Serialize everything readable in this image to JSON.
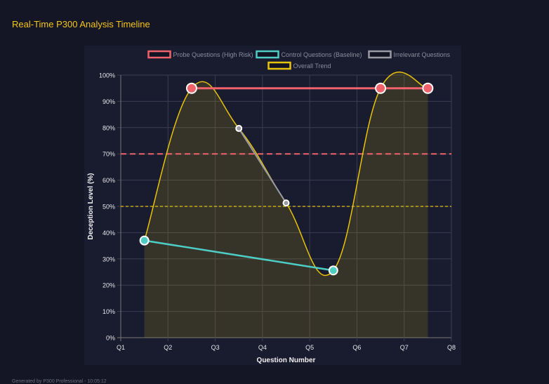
{
  "header": {
    "title": "Real-Time P300 Analysis Timeline"
  },
  "footer": {
    "text": "Generated by P300 Professional - 10:05:12"
  },
  "chart_data": {
    "type": "line",
    "xlabel": "Question Number",
    "ylabel": "Deception Level (%)",
    "x_ticks": [
      "Q1",
      "Q2",
      "Q3",
      "Q4",
      "Q5",
      "Q6",
      "Q7",
      "Q8"
    ],
    "y_ticks": [
      "0%",
      "10%",
      "20%",
      "30%",
      "40%",
      "50%",
      "60%",
      "70%",
      "80%",
      "90%",
      "100%"
    ],
    "ylim": [
      0,
      100
    ],
    "grid": true,
    "legend_placement": "top",
    "series": [
      {
        "name": "Probe Questions (High Risk)",
        "color": "#f0636a",
        "x": [
          1.5,
          5.5,
          6.5
        ],
        "values": [
          95,
          95,
          95
        ]
      },
      {
        "name": "Control Questions (Baseline)",
        "color": "#4ecdc4",
        "x": [
          0.5,
          4.5
        ],
        "values": [
          37,
          25.6
        ]
      },
      {
        "name": "Irrelevant Questions",
        "color": "#9a9aa3",
        "x": [
          2.5,
          3.5
        ],
        "values": [
          79.7,
          51.3
        ]
      },
      {
        "name": "Overall Trend",
        "color": "#e8c30a",
        "x": [
          0.5,
          1.5,
          2.5,
          3.5,
          4.5,
          5.5,
          6.5
        ],
        "values": [
          37,
          95,
          79.7,
          51.3,
          25.6,
          95,
          95
        ]
      }
    ],
    "reference_lines": [
      {
        "value": 70,
        "color": "#f0636a"
      },
      {
        "value": 50,
        "color": "#e8c30a"
      }
    ]
  }
}
